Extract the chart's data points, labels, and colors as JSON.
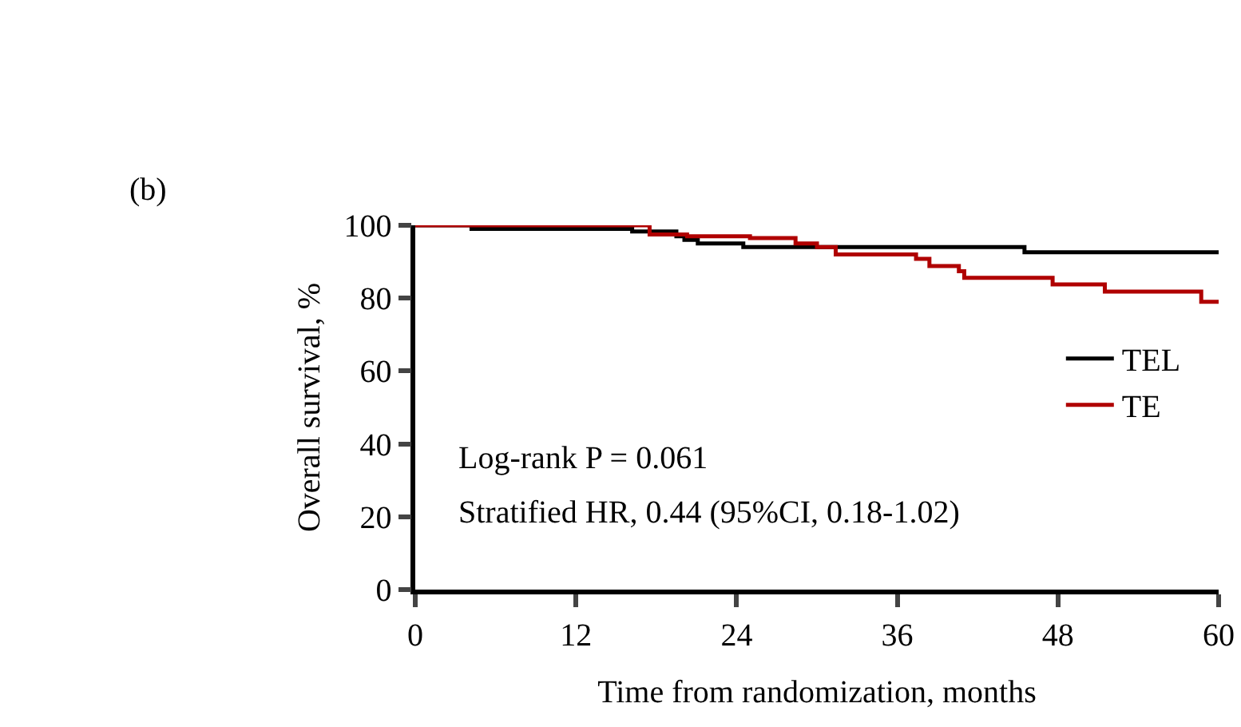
{
  "chart_data": {
    "type": "step",
    "xlabel": "Time from randomization, months",
    "ylabel": "Overall survival, %",
    "annotations": [
      "(b)",
      "Log-rank P = 0.061",
      "Stratified HR, 0.44 (95%CI, 0.18-1.02)"
    ],
    "xlim": [
      0,
      60
    ],
    "xticks": [
      0,
      12,
      24,
      36,
      48,
      60
    ],
    "ylim": [
      0,
      100
    ],
    "yticks": [
      0,
      20,
      40,
      60,
      80,
      100
    ],
    "grid": false,
    "legend": "right",
    "marker": "none",
    "line_style": "solid",
    "series": [
      {
        "name": "TEL",
        "color": "#000000",
        "x": [
          0,
          4.2,
          16.2,
          19.5,
          20.1,
          21.1,
          24.5,
          45.5,
          60
        ],
        "values": [
          100,
          99,
          98.3,
          97,
          96,
          95,
          94,
          92.6,
          92.6
        ]
      },
      {
        "name": "TE",
        "color": "#b00000",
        "x": [
          0,
          17.5,
          20.3,
          25,
          28.4,
          30,
          31.4,
          37.4,
          38.4,
          40.6,
          41,
          47.6,
          51.5,
          58.7,
          60
        ],
        "values": [
          100,
          97.5,
          97,
          96.5,
          95,
          94,
          92,
          90.8,
          88.8,
          87.4,
          85.6,
          83.8,
          81.8,
          79,
          79
        ]
      }
    ]
  }
}
